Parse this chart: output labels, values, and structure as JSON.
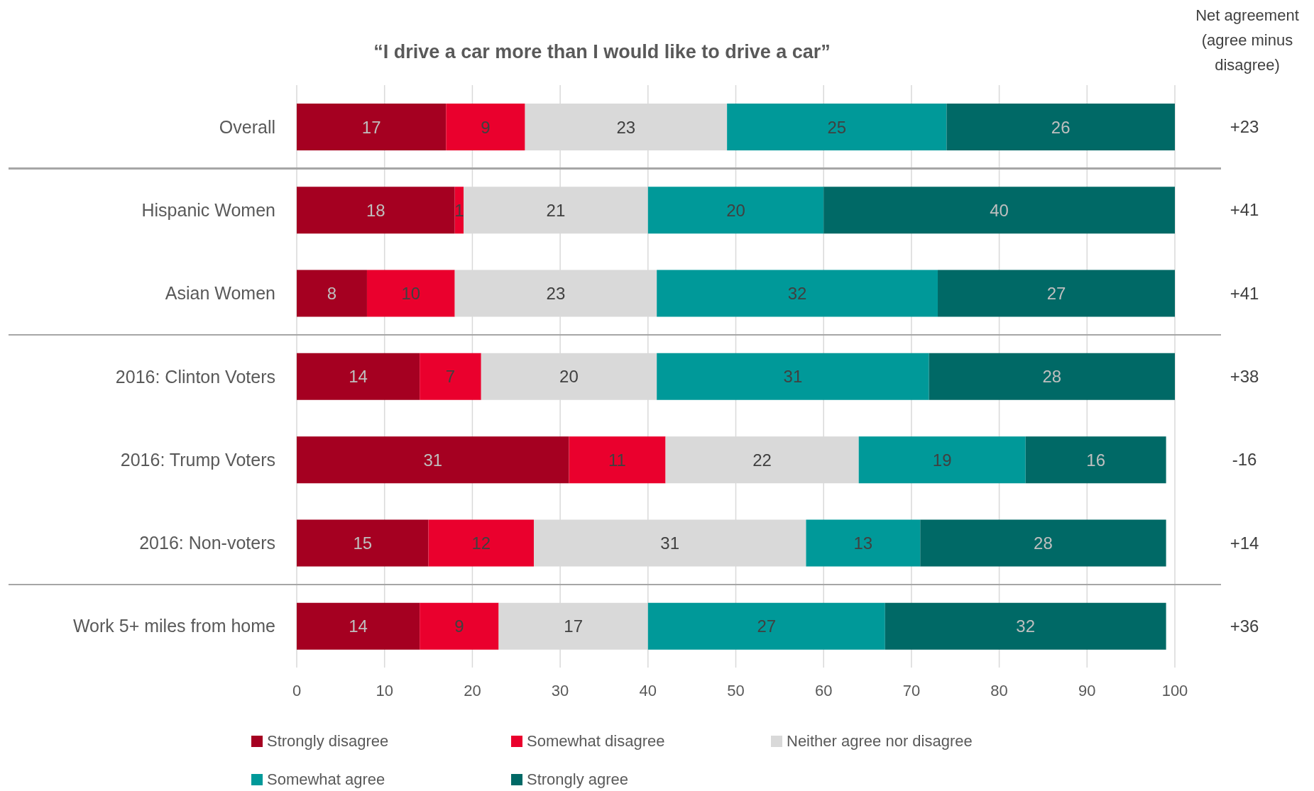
{
  "chart_data": {
    "type": "bar",
    "orientation": "horizontal",
    "stacked": true,
    "title": "“I drive a car more than I would like to drive a car”",
    "y2label": "Net agreement (agree minus disagree)",
    "categories": [
      "Overall",
      "Hispanic Women",
      "Asian Women",
      "2016: Clinton Voters",
      "2016: Trump Voters",
      "2016: Non-voters",
      "Work 5+ miles from home"
    ],
    "y2_categories": [
      "+23",
      "+41",
      "+41",
      "+38",
      "-16",
      "+14",
      "+36"
    ],
    "series": [
      {
        "name": "Strongly disagree",
        "color": "#a50021",
        "values": [
          17,
          18,
          8,
          14,
          31,
          15,
          14
        ]
      },
      {
        "name": "Somewhat disagree",
        "color": "#ea002d",
        "values": [
          9,
          1,
          10,
          7,
          11,
          12,
          9
        ]
      },
      {
        "name": "Neither agree nor disagree",
        "color": "#d9d9d9",
        "values": [
          23,
          21,
          23,
          20,
          22,
          31,
          17
        ]
      },
      {
        "name": "Somewhat agree",
        "color": "#009999",
        "values": [
          25,
          20,
          32,
          31,
          19,
          13,
          27
        ]
      },
      {
        "name": "Strongly agree",
        "color": "#006966",
        "values": [
          26,
          40,
          27,
          28,
          16,
          28,
          32
        ]
      }
    ],
    "xlim": [
      0,
      100
    ],
    "xticks": [
      0,
      10,
      20,
      30,
      40,
      50,
      60,
      70,
      80,
      90,
      100
    ],
    "grid": "x",
    "legend": "bottom",
    "data_labels": true
  }
}
